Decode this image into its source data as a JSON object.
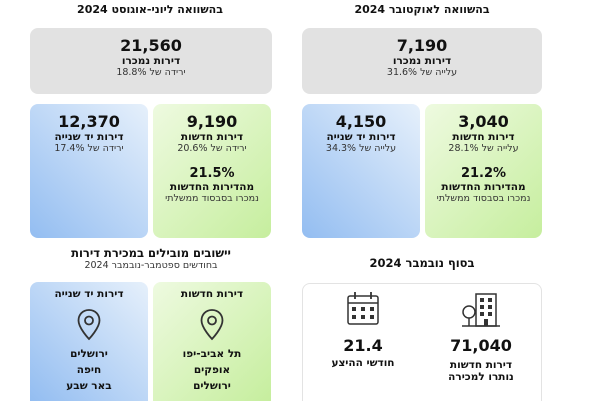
{
  "left": {
    "header": "בהשוואה ליוני-אוגוסט 2024",
    "sold": {
      "value": "21,560",
      "label": "דירות נמכרו",
      "change": "ירידה של 18.8%"
    },
    "secondhand": {
      "value": "12,370",
      "label": "דירות יד שנייה",
      "change": "ירידה של 17.4%"
    },
    "new": {
      "value": "9,190",
      "label": "דירות חדשות",
      "change": "ירידה של 20.6%",
      "share": "21.5%",
      "share_label": "מהדירות החדשות",
      "share_sub": "נמכרו בסבסוד ממשלתי"
    }
  },
  "right": {
    "header": "בהשוואה לאוקטובר 2024",
    "sold": {
      "value": "7,190",
      "label": "דירות נמכרו",
      "change": "עלייה של 31.6%"
    },
    "secondhand": {
      "value": "4,150",
      "label": "דירות יד שנייה",
      "change": "עלייה של 34.3%"
    },
    "new": {
      "value": "3,040",
      "label": "דירות חדשות",
      "change": "עלייה של 28.1%",
      "share": "21.2%",
      "share_label": "מהדירות החדשות",
      "share_sub": "נמכרו בסבסוד ממשלתי"
    }
  },
  "leading": {
    "title": "יישובים מובילים במכירת דירות",
    "subtitle": "בחודשים ספטמבר-נובמבר 2024",
    "new_label": "דירות חדשות",
    "new_cities": [
      "תל אביב-יפו",
      "אופקים",
      "ירושלים"
    ],
    "secondhand_label": "דירות יד שנייה",
    "secondhand_cities": [
      "ירושלים",
      "חיפה",
      "באר שבע"
    ]
  },
  "end_nov": {
    "title": "בסוף נובמבר 2024",
    "inventory_value": "71,040",
    "inventory_label1": "דירות חדשות",
    "inventory_label2": "נותרו למכירה",
    "months_value": "21.4",
    "months_label": "חודשי ההיצע"
  },
  "icons": [
    "location-pin-icon",
    "calendar-icon",
    "building-icon"
  ]
}
